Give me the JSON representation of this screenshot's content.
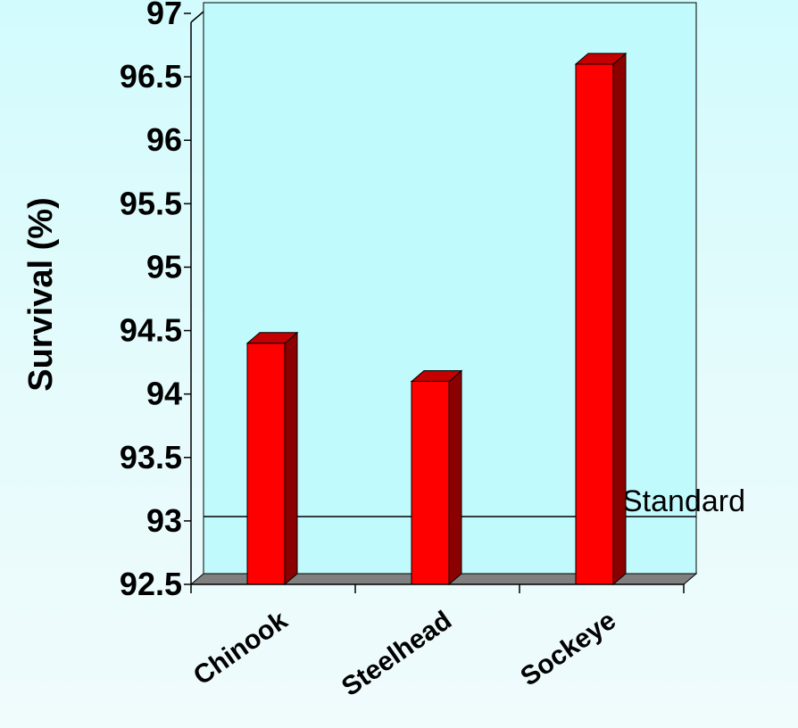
{
  "chart_data": {
    "type": "bar",
    "title": "",
    "xlabel": "",
    "ylabel": "Survival (%)",
    "categories": [
      "Chinook",
      "Steelhead",
      "Sockeye"
    ],
    "values": [
      94.4,
      94.1,
      96.6
    ],
    "ylim": [
      92.5,
      97
    ],
    "yticks": [
      "92.5",
      "93",
      "93.5",
      "94",
      "94.5",
      "95",
      "95.5",
      "96",
      "96.5",
      "97"
    ],
    "grid": false,
    "legend": "none",
    "reference_line": {
      "label": "Standard",
      "value": 92.95
    },
    "colors": {
      "bar_front": "#ff0000",
      "bar_side": "#8b0000",
      "bar_top": "#c40000",
      "floor": "#808080",
      "plot_background": "#c0fafc",
      "page_background": "#e6fbfc"
    }
  }
}
